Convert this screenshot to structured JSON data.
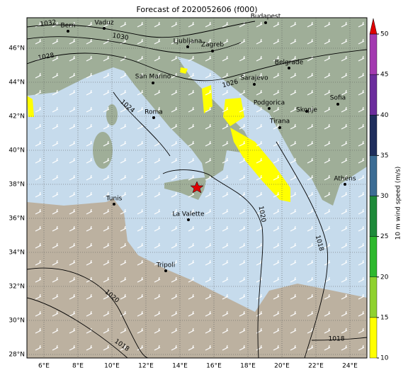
{
  "title": "Forecast of 2020052606 (f000)",
  "lon_labels": [
    "6°E",
    "8°E",
    "10°E",
    "12°E",
    "14°E",
    "16°E",
    "18°E",
    "20°E",
    "22°E",
    "24°E"
  ],
  "lat_labels": [
    "46°N",
    "44°N",
    "42°N",
    "40°N",
    "38°N",
    "36°N",
    "34°N",
    "32°N",
    "30°N",
    "28°N"
  ],
  "cities": [
    "Bern",
    "Vaduz",
    "Budapest",
    "Ljubljana",
    "Zagreb",
    "Belgrade",
    "San Marino",
    "Sarajevo",
    "Roma",
    "Podgorica",
    "Skopje",
    "Sofia",
    "Tirana",
    "Athens",
    "Tunis",
    "La Valette",
    "Tripoli"
  ],
  "isobars": [
    "1032",
    "1030",
    "1028",
    "1026",
    "1024",
    "1020",
    "1018",
    "1020",
    "1018",
    "1018"
  ],
  "colorbar": {
    "label": "10 m wind speed (m/s)",
    "ticks": [
      10,
      15,
      20,
      25,
      30,
      35,
      40,
      45,
      50
    ],
    "colors": [
      "#ffff00",
      "#8fd12f",
      "#2eb82e",
      "#1e8a3a",
      "#3c6c94",
      "#1f2e5c",
      "#6b2d9c",
      "#a33ab0"
    ],
    "extend_color": "#e00000"
  }
}
